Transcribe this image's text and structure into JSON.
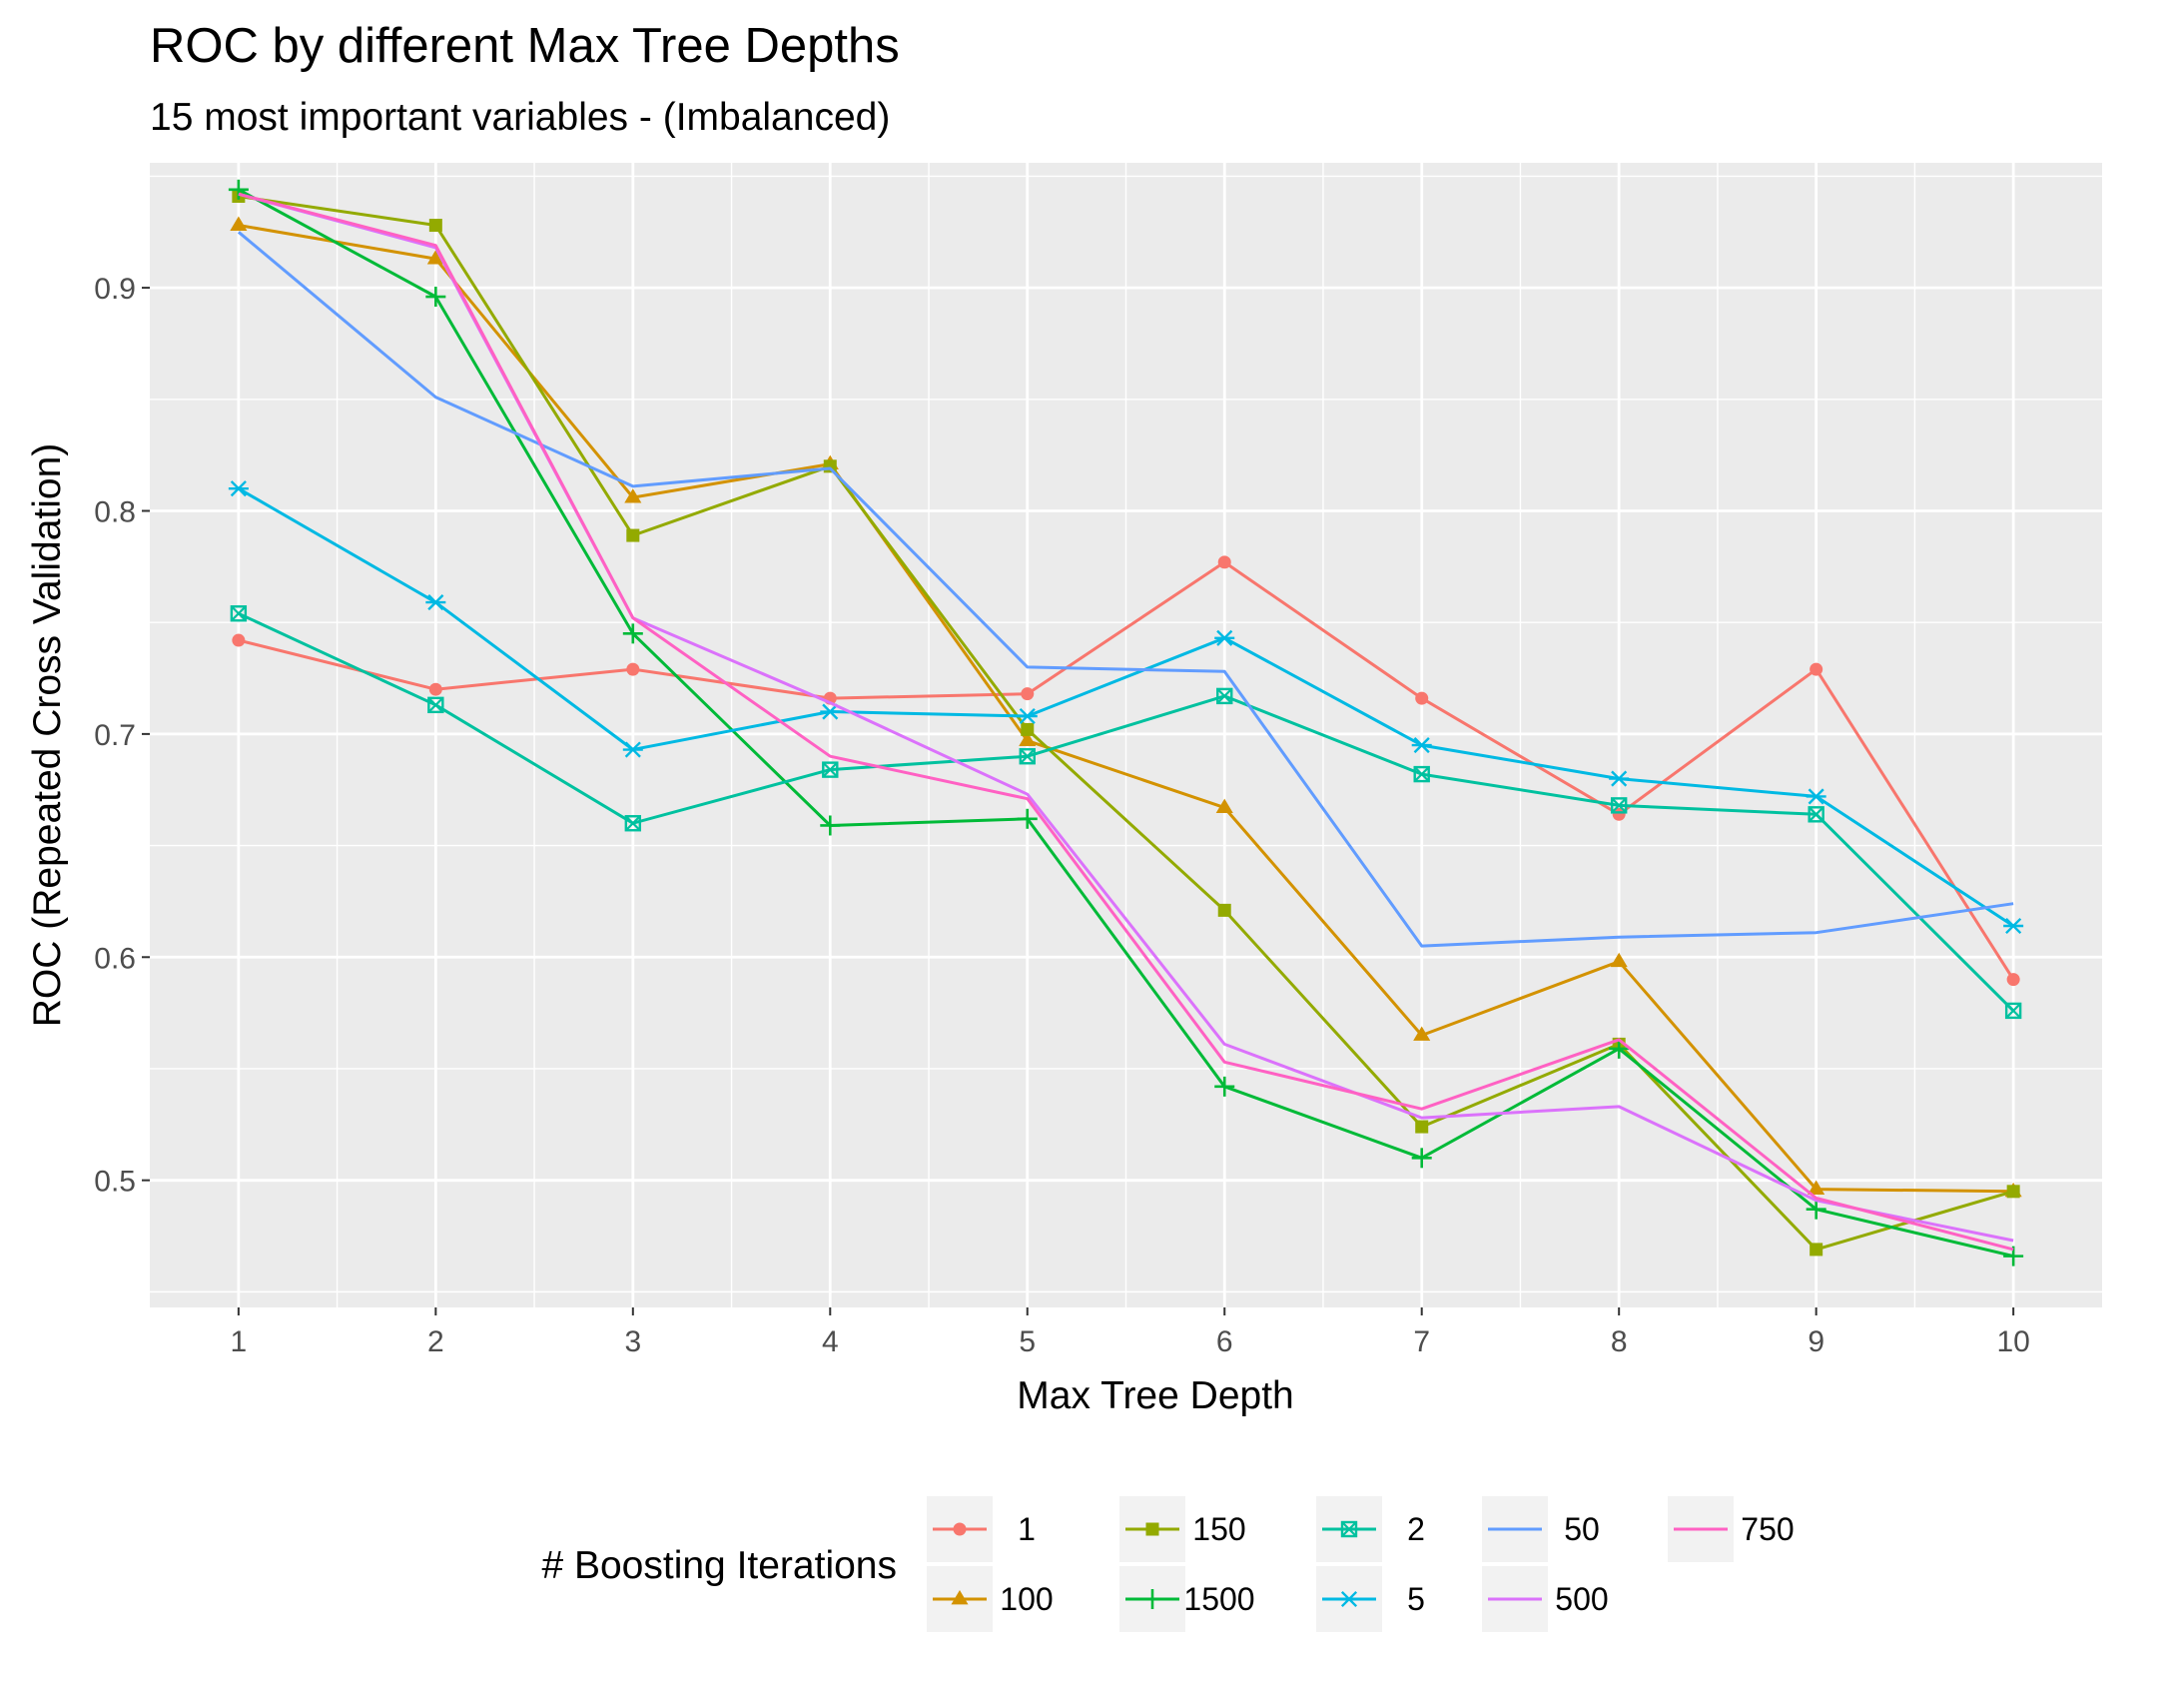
{
  "chart_data": {
    "type": "line",
    "title": "ROC by different Max Tree Depths",
    "subtitle": "15 most important variables - (Imbalanced)",
    "xlabel": "Max Tree Depth",
    "ylabel": "ROC (Repeated Cross Validation)",
    "x": [
      1,
      2,
      3,
      4,
      5,
      6,
      7,
      8,
      9,
      10
    ],
    "x_tick_labels": [
      "1",
      "2",
      "3",
      "4",
      "5",
      "6",
      "7",
      "8",
      "9",
      "10"
    ],
    "y_ticks": [
      0.5,
      0.6,
      0.7,
      0.8,
      0.9
    ],
    "y_tick_labels": [
      "0.5",
      "0.6",
      "0.7",
      "0.8",
      "0.9"
    ],
    "xlim": [
      0.55,
      10.45
    ],
    "ylim": [
      0.443,
      0.956
    ],
    "grid": true,
    "legend_title": "# Boosting Iterations",
    "legend_position": "bottom",
    "series": [
      {
        "name": "1",
        "color": "#F8766D",
        "marker": "circle",
        "values": [
          0.742,
          0.72,
          0.729,
          0.716,
          0.718,
          0.777,
          0.716,
          0.664,
          0.729,
          0.59
        ]
      },
      {
        "name": "100",
        "color": "#D39200",
        "marker": "triangle",
        "values": [
          0.928,
          0.913,
          0.806,
          0.821,
          0.697,
          0.667,
          0.565,
          0.598,
          0.496,
          0.495
        ]
      },
      {
        "name": "150",
        "color": "#93AA00",
        "marker": "square",
        "values": [
          0.941,
          0.928,
          0.789,
          0.82,
          0.702,
          0.621,
          0.524,
          0.561,
          0.469,
          0.495
        ]
      },
      {
        "name": "1500",
        "color": "#00BA38",
        "marker": "plus",
        "values": [
          0.944,
          0.896,
          0.745,
          0.659,
          0.662,
          0.542,
          0.51,
          0.559,
          0.487,
          0.466
        ]
      },
      {
        "name": "2",
        "color": "#00C19F",
        "marker": "square-cross",
        "values": [
          0.754,
          0.713,
          0.66,
          0.684,
          0.69,
          0.717,
          0.682,
          0.668,
          0.664,
          0.576
        ]
      },
      {
        "name": "5",
        "color": "#00B9E3",
        "marker": "asterisk",
        "values": [
          0.81,
          0.759,
          0.693,
          0.71,
          0.708,
          0.743,
          0.695,
          0.68,
          0.672,
          0.614
        ]
      },
      {
        "name": "50",
        "color": "#619CFF",
        "marker": "none",
        "values": [
          0.925,
          0.851,
          0.811,
          0.819,
          0.73,
          0.728,
          0.605,
          0.609,
          0.611,
          0.624
        ]
      },
      {
        "name": "500",
        "color": "#DB72FB",
        "marker": "none",
        "values": [
          0.942,
          0.918,
          0.752,
          0.714,
          0.673,
          0.561,
          0.528,
          0.533,
          0.491,
          0.473
        ]
      },
      {
        "name": "750",
        "color": "#FF61C3",
        "marker": "none",
        "values": [
          0.942,
          0.919,
          0.752,
          0.69,
          0.671,
          0.553,
          0.532,
          0.563,
          0.492,
          0.469
        ]
      }
    ],
    "legend_rows": [
      [
        "1",
        "150",
        "2",
        "50",
        "750"
      ],
      [
        "100",
        "1500",
        "5",
        "500"
      ]
    ]
  }
}
